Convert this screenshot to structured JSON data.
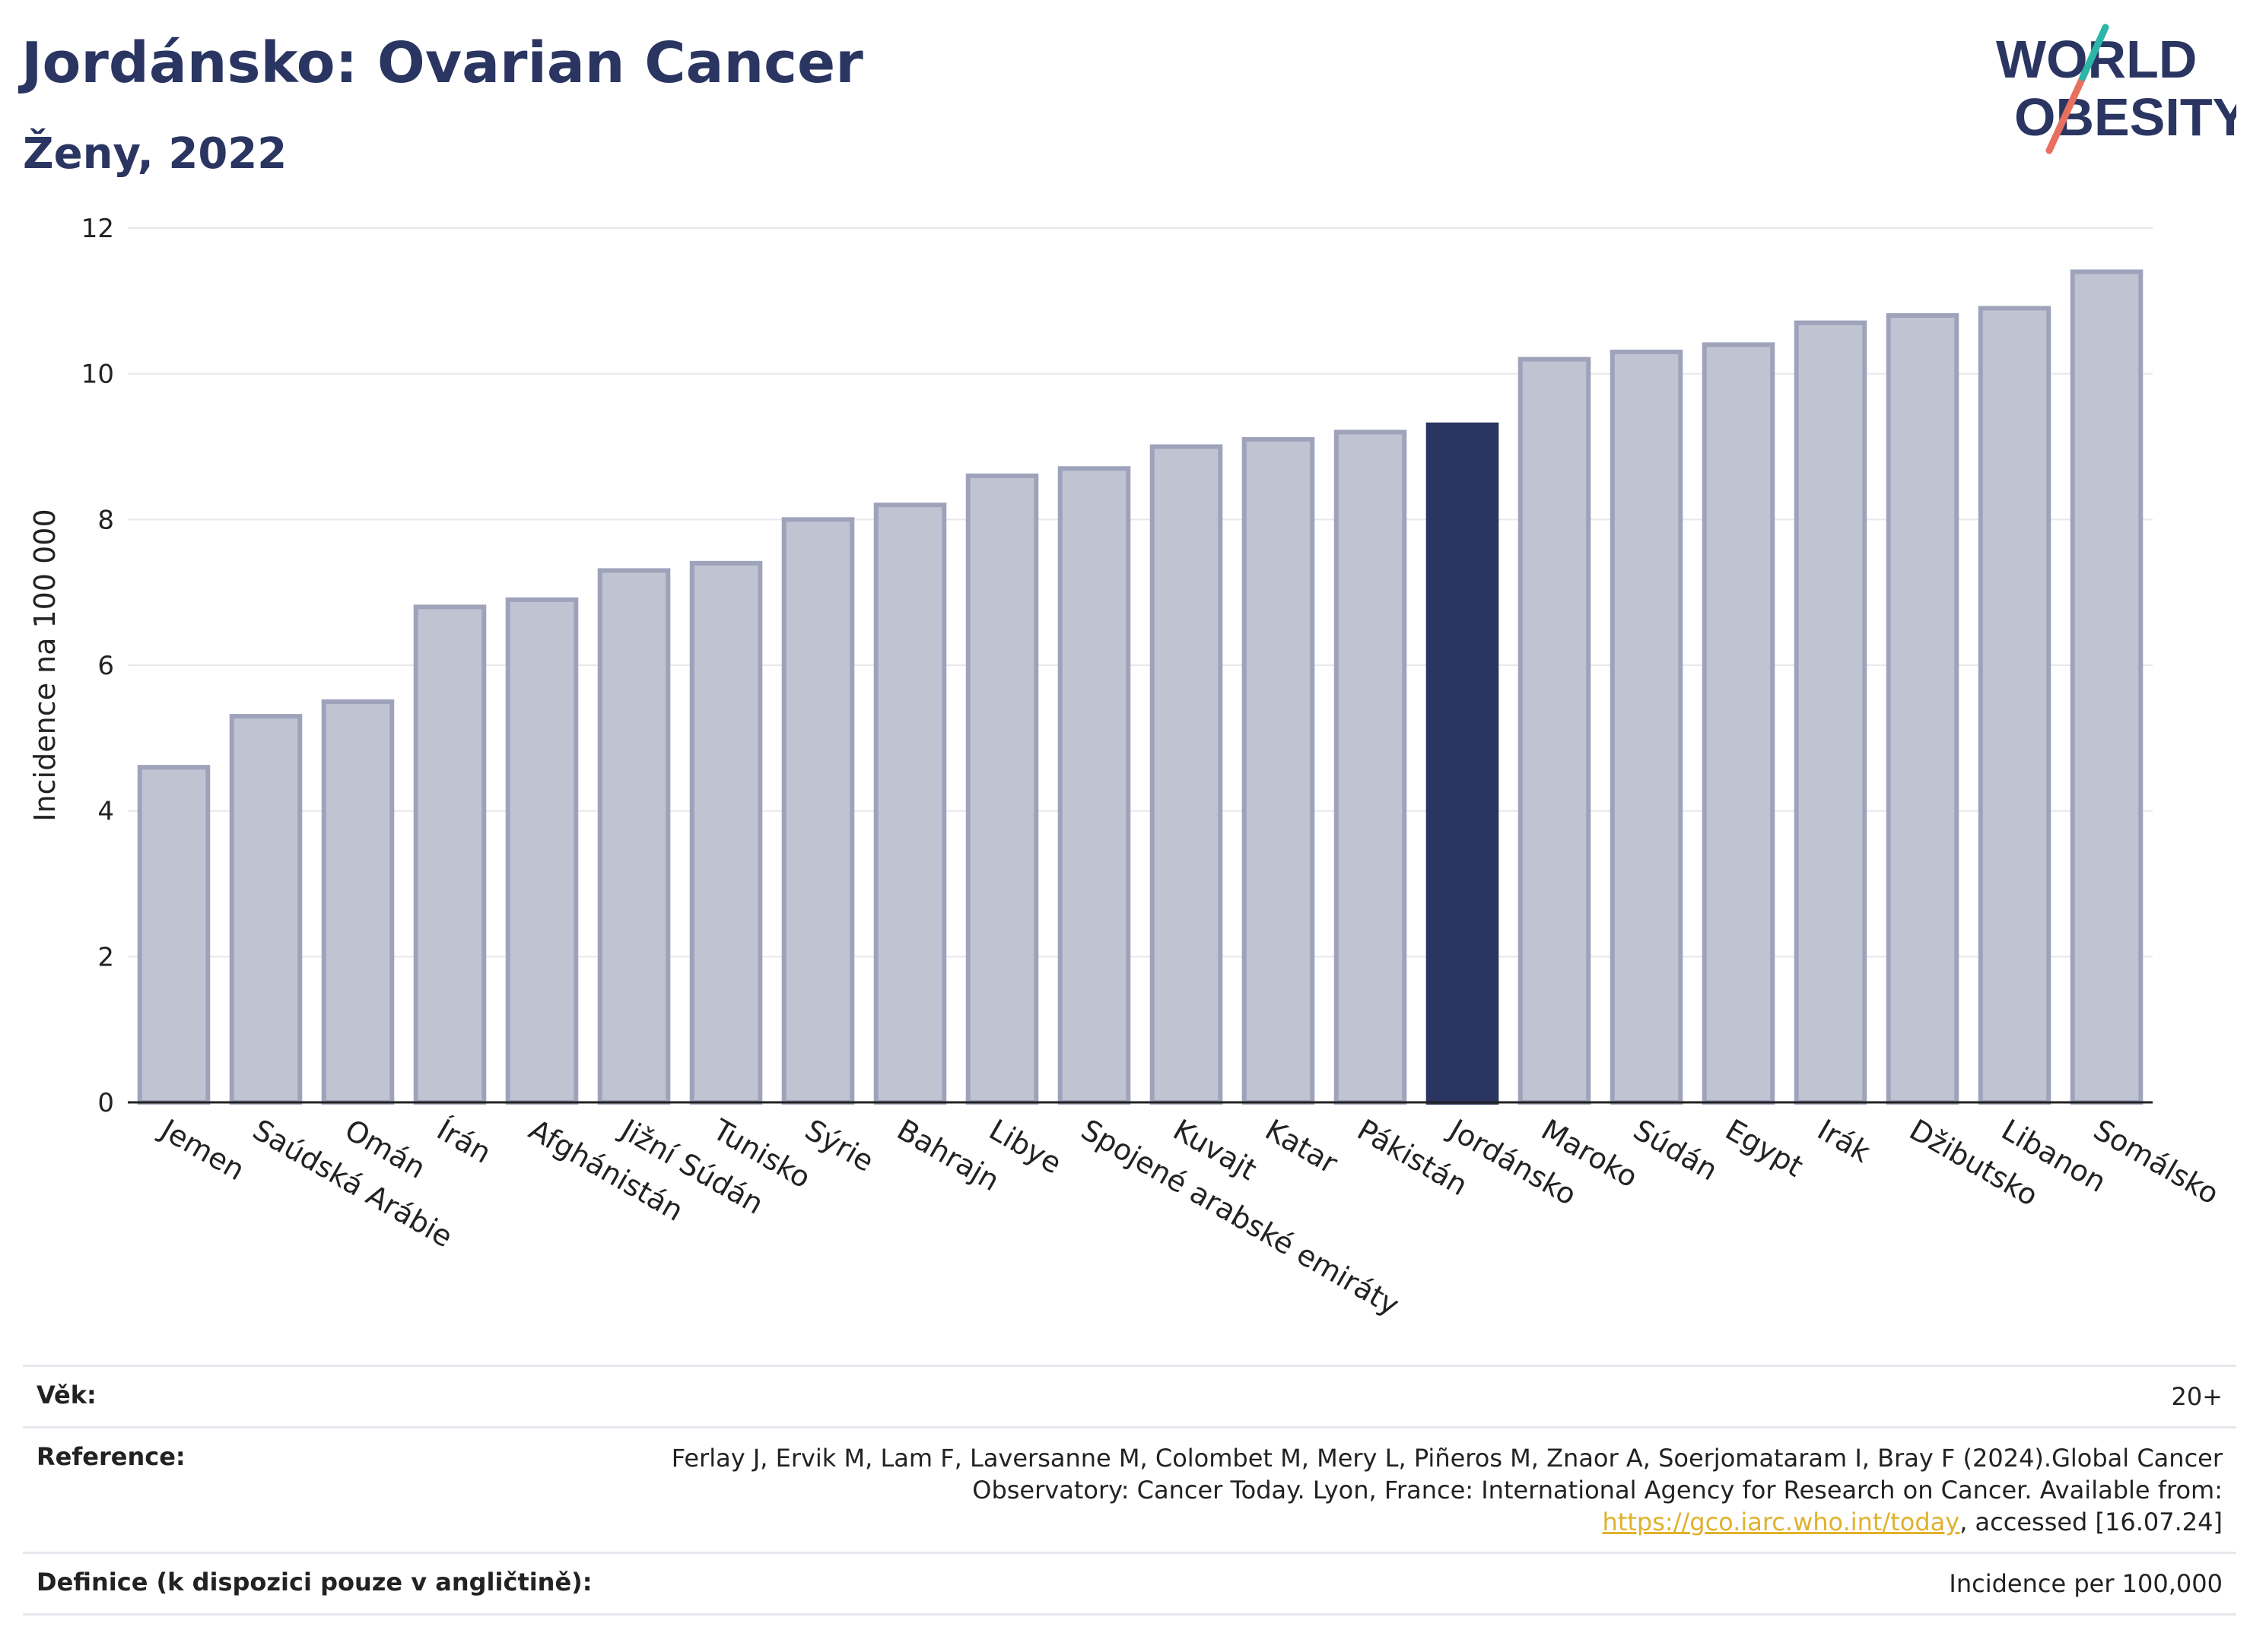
{
  "header": {
    "title": "Jordánsko: Ovarian Cancer",
    "subtitle": "Ženy, 2022"
  },
  "logo": {
    "line1": "WORLD",
    "line2": "OBESITY",
    "accent_colors": [
      "#2bb6a8",
      "#e8705f"
    ]
  },
  "chart_data": {
    "type": "bar",
    "ylabel": "Incidence na 100 000",
    "ylim": [
      0,
      12
    ],
    "yticks": [
      0,
      2,
      4,
      6,
      8,
      10,
      12
    ],
    "grid": true,
    "highlight": "Jordánsko",
    "colors": {
      "bar": "#c0c3d1",
      "bar_border": "#9ea3bb",
      "highlight": "#2a3561"
    },
    "categories": [
      "Jemen",
      "Saúdská Arábie",
      "Omán",
      "Írán",
      "Afghánistán",
      "Jižní Súdán",
      "Tunisko",
      "Sýrie",
      "Bahrajn",
      "Libye",
      "Spojené arabské emiráty",
      "Kuvajt",
      "Katar",
      "Pákistán",
      "Jordánsko",
      "Maroko",
      "Súdán",
      "Egypt",
      "Irák",
      "Džibutsko",
      "Libanon",
      "Somálsko"
    ],
    "values": [
      4.6,
      5.3,
      5.5,
      6.8,
      6.9,
      7.3,
      7.4,
      8.0,
      8.2,
      8.6,
      8.7,
      9.0,
      9.1,
      9.2,
      9.3,
      10.2,
      10.3,
      10.4,
      10.7,
      10.8,
      10.9,
      11.4
    ]
  },
  "meta": {
    "age_label": "Věk:",
    "age_value": "20+",
    "ref_label": "Reference:",
    "ref_text_before": "Ferlay J, Ervik M, Lam F, Laversanne M, Colombet M, Mery L, Piñeros M, Znaor A, Soerjomataram I, Bray F (2024).Global Cancer Observatory: Cancer Today. Lyon, France: International Agency for Research on Cancer. Available from: ",
    "ref_link": "https://gco.iarc.who.int/today",
    "ref_text_after": ", accessed [16.07.24]",
    "def_label": "Definice (k dispozici pouze v angličtině):",
    "def_value": "Incidence per 100,000"
  }
}
